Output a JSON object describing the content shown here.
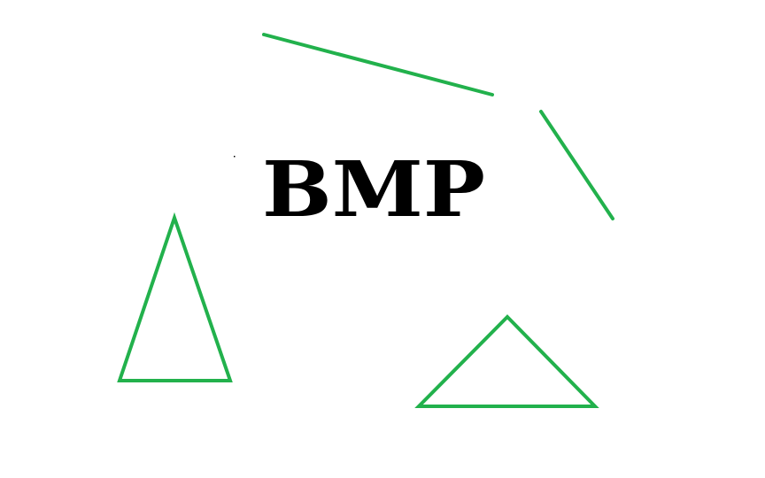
{
  "canvas": {
    "background": "#ffffff",
    "stroke_color": "#22b14c",
    "text_color": "#000000"
  },
  "caption": {
    "text": "BMP"
  }
}
